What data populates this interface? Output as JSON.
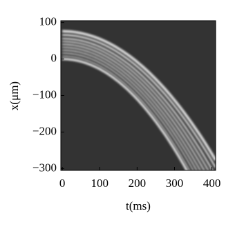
{
  "chart_data": {
    "type": "density",
    "x_label": "t(ms)",
    "y_label": "x(μm)",
    "xlim": [
      -4,
      410
    ],
    "ylim": [
      -305,
      105
    ],
    "xticks": [
      0,
      100,
      200,
      300,
      400
    ],
    "yticks": [
      100,
      0,
      {
        "value": -100,
        "label": "−100"
      },
      {
        "value": -200,
        "label": "−200"
      },
      {
        "value": -300,
        "label": "−300"
      }
    ],
    "background": "#333333",
    "color": "#ffffff"
  }
}
